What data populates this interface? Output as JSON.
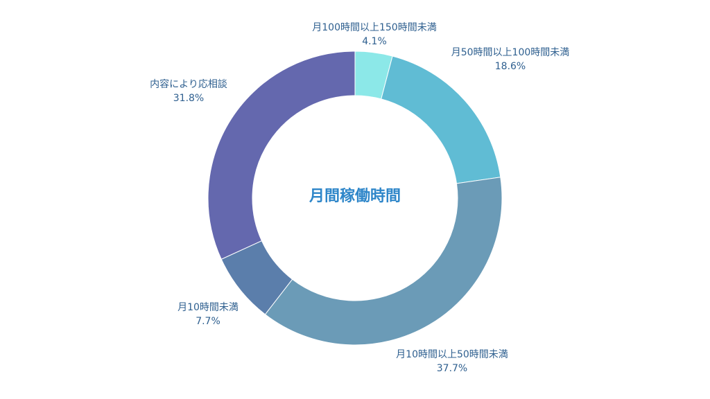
{
  "chart_data": {
    "type": "pie",
    "donut": true,
    "center_title": "月間稼働時間",
    "slices": [
      {
        "label": "月100時間以上150時間未満",
        "value": 4.1,
        "value_label": "4.1%",
        "color": "#8ce8e8"
      },
      {
        "label": "月50時間以上100時間未満",
        "value": 18.6,
        "value_label": "18.6%",
        "color": "#60bcd4"
      },
      {
        "label": "月10時間以上50時間未満",
        "value": 37.7,
        "value_label": "37.7%",
        "color": "#6b9bb7"
      },
      {
        "label": "月10時間未満",
        "value": 7.7,
        "value_label": "7.7%",
        "color": "#5b7eab"
      },
      {
        "label": "内容により応相談",
        "value": 31.8,
        "value_label": "31.8%",
        "color": "#6468ae"
      }
    ]
  }
}
